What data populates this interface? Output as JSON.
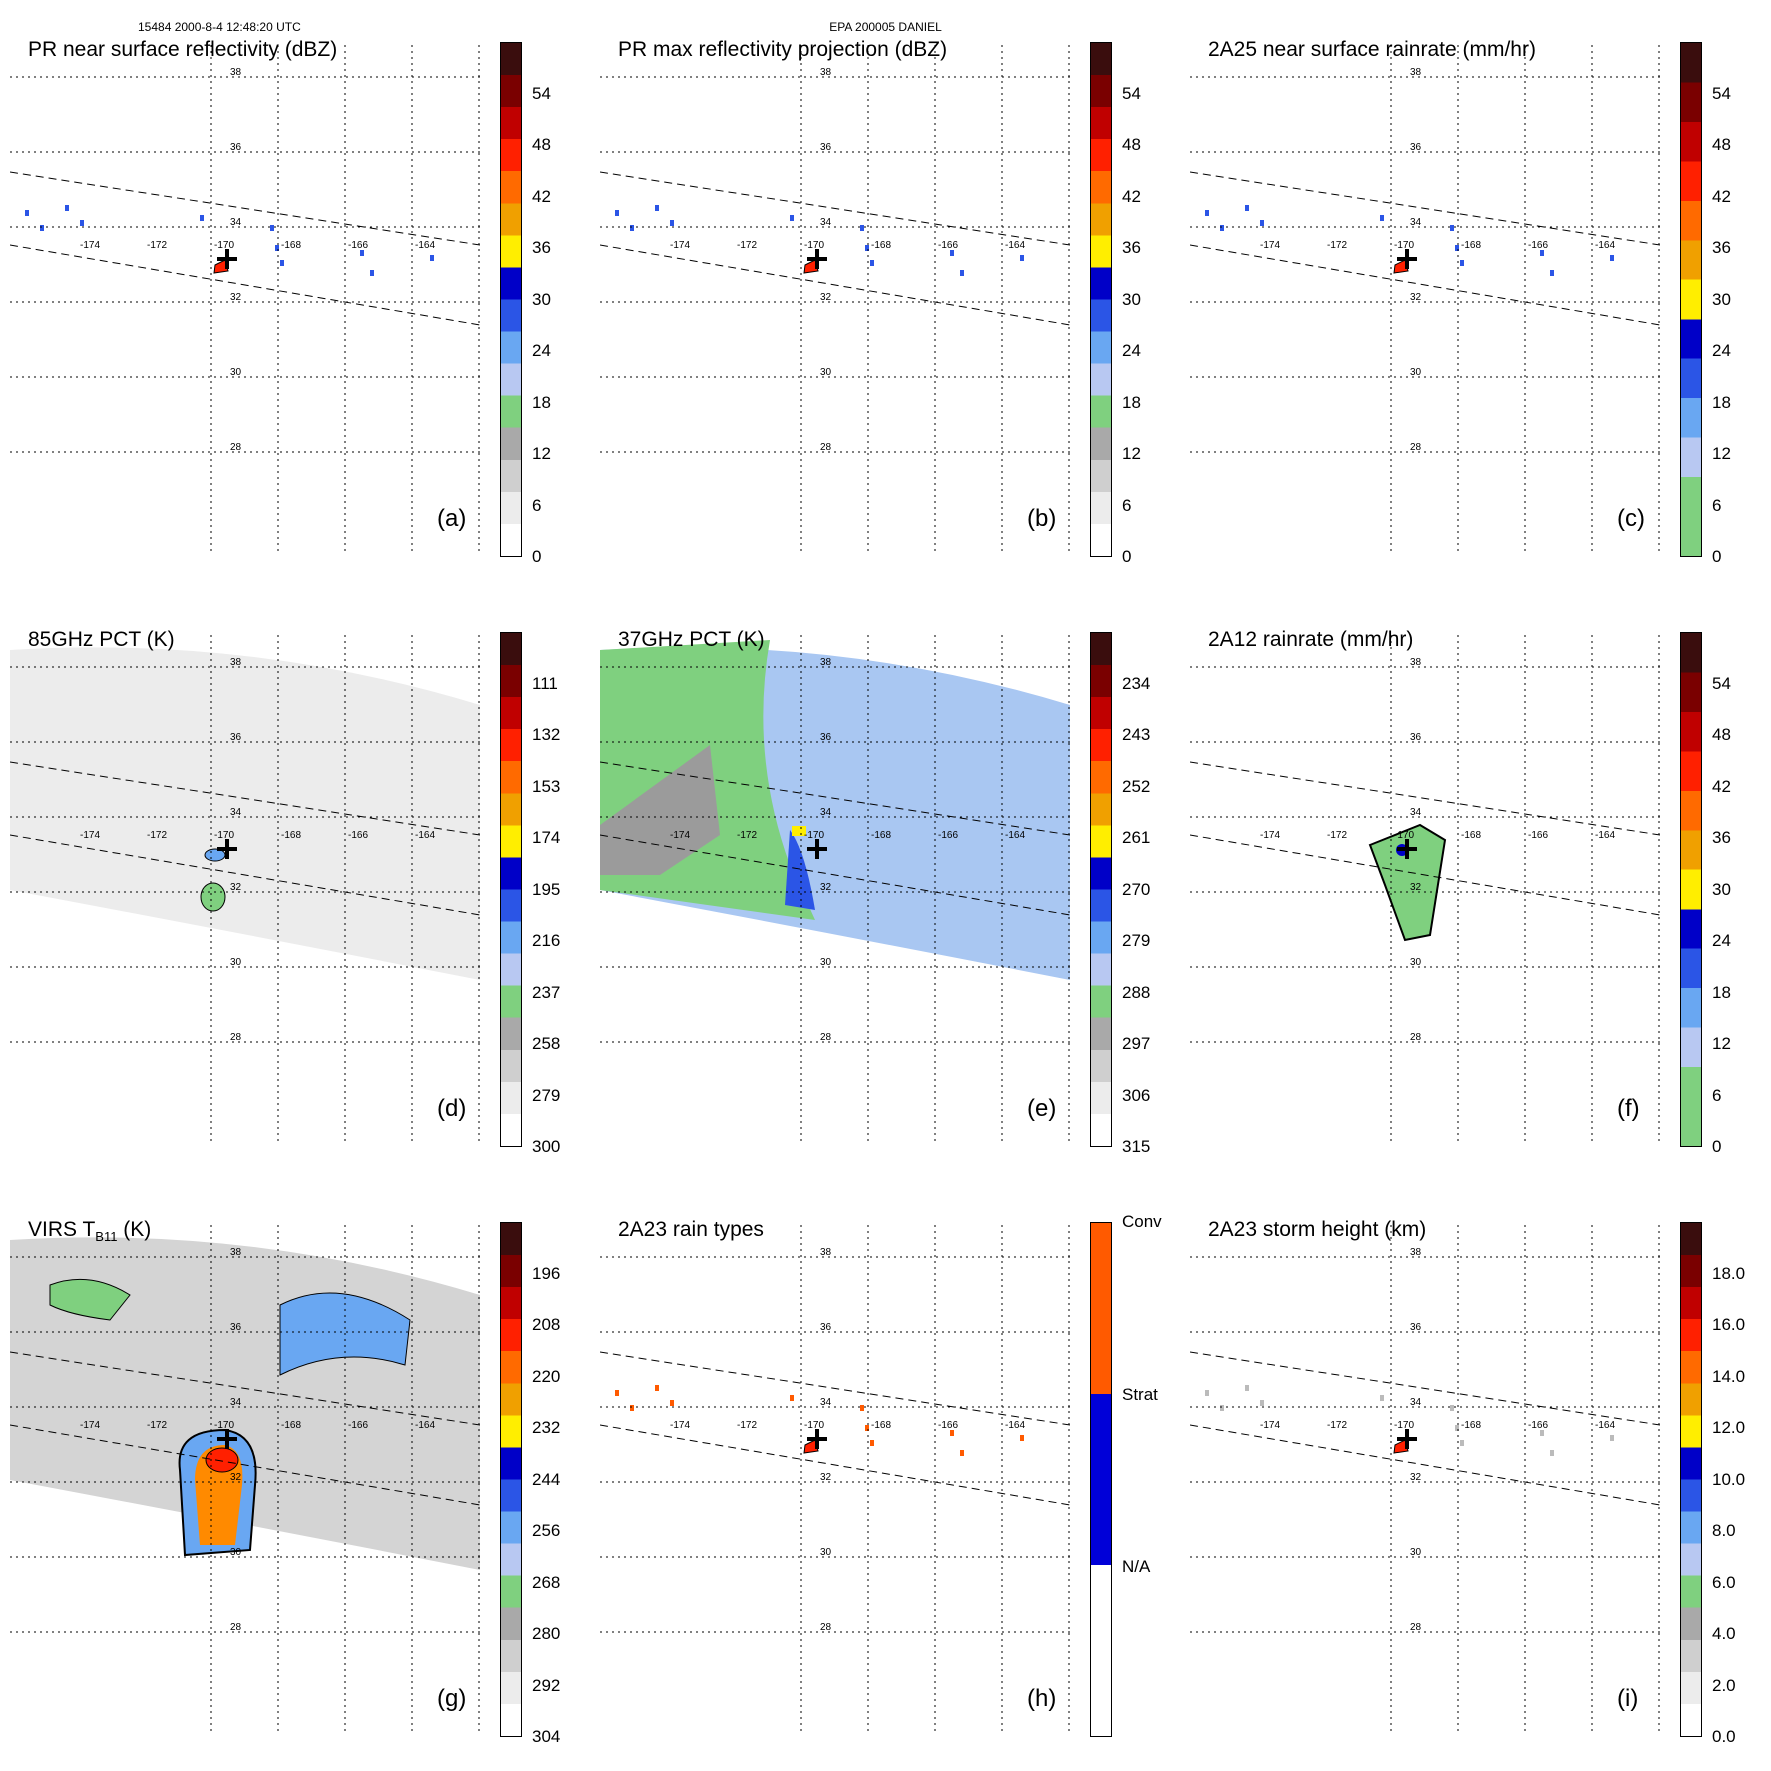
{
  "header": {
    "left": "15484 2000-8-4 12:48:20 UTC",
    "center": "EPA 200005 DANIEL"
  },
  "map": {
    "lat_labels": [
      "38",
      "36",
      "34",
      "32",
      "30",
      "28"
    ],
    "lon_labels": [
      "-174",
      "-172",
      "-170",
      "-168",
      "-166",
      "-164"
    ]
  },
  "panels": [
    {
      "id": "a",
      "title": "PR near surface reflectivity (dBZ)",
      "label": "(a)",
      "ticks": [
        "54",
        "48",
        "42",
        "36",
        "30",
        "24",
        "18",
        "12",
        "6",
        "0"
      ],
      "scale": "dbz"
    },
    {
      "id": "b",
      "title": "PR max reflectivity projection (dBZ)",
      "label": "(b)",
      "ticks": [
        "54",
        "48",
        "42",
        "36",
        "30",
        "24",
        "18",
        "12",
        "6",
        "0"
      ],
      "scale": "dbz"
    },
    {
      "id": "c",
      "title": "2A25 near surface rainrate (mm/hr)",
      "label": "(c)",
      "ticks": [
        "54",
        "48",
        "42",
        "36",
        "30",
        "24",
        "18",
        "12",
        "6",
        "0"
      ],
      "scale": "rain"
    },
    {
      "id": "d",
      "title": "85GHz PCT (K)",
      "label": "(d)",
      "ticks": [
        "111",
        "132",
        "153",
        "174",
        "195",
        "216",
        "237",
        "258",
        "279",
        "300"
      ],
      "scale": "dbz"
    },
    {
      "id": "e",
      "title": "37GHz PCT (K)",
      "label": "(e)",
      "ticks": [
        "234",
        "243",
        "252",
        "261",
        "270",
        "279",
        "288",
        "297",
        "306",
        "315"
      ],
      "scale": "dbz"
    },
    {
      "id": "f",
      "title": "2A12 rainrate (mm/hr)",
      "label": "(f)",
      "ticks": [
        "54",
        "48",
        "42",
        "36",
        "30",
        "24",
        "18",
        "12",
        "6",
        "0"
      ],
      "scale": "rain"
    },
    {
      "id": "g",
      "title_main": "VIRS T",
      "title_sub": "B11",
      "title_tail": " (K)",
      "label": "(g)",
      "ticks": [
        "196",
        "208",
        "220",
        "232",
        "244",
        "256",
        "268",
        "280",
        "292",
        "304"
      ],
      "scale": "dbz"
    },
    {
      "id": "h",
      "title": "2A23 rain types",
      "label": "(h)",
      "ticks": [
        "Conv",
        "Strat",
        "N/A"
      ],
      "scale": "types"
    },
    {
      "id": "i",
      "title": "2A23 storm height (km)",
      "label": "(i)",
      "ticks": [
        "18.0",
        "16.0",
        "14.0",
        "12.0",
        "10.0",
        "8.0",
        "6.0",
        "4.0",
        "2.0",
        "0.0"
      ],
      "scale": "dbz"
    }
  ],
  "colors": {
    "dbz": [
      "#ffffff",
      "#ececec",
      "#cfcfcf",
      "#a9a9a9",
      "#7fd07f",
      "#b8c8f2",
      "#69a7f2",
      "#2b55e6",
      "#0000c8",
      "#ffee00",
      "#f0a000",
      "#ff6a00",
      "#ff2000",
      "#c00000",
      "#7a0000",
      "#3a0d0d"
    ],
    "rain": [
      "#7fd07f",
      "#7fd07f",
      "#b8c8f2",
      "#69a7f2",
      "#2b55e6",
      "#0000c8",
      "#ffee00",
      "#f0a000",
      "#ff6a00",
      "#ff2000",
      "#c00000",
      "#7a0000",
      "#3a0d0d"
    ],
    "types": [
      "#ffffff",
      "#0000d8",
      "#ff5a00"
    ]
  }
}
